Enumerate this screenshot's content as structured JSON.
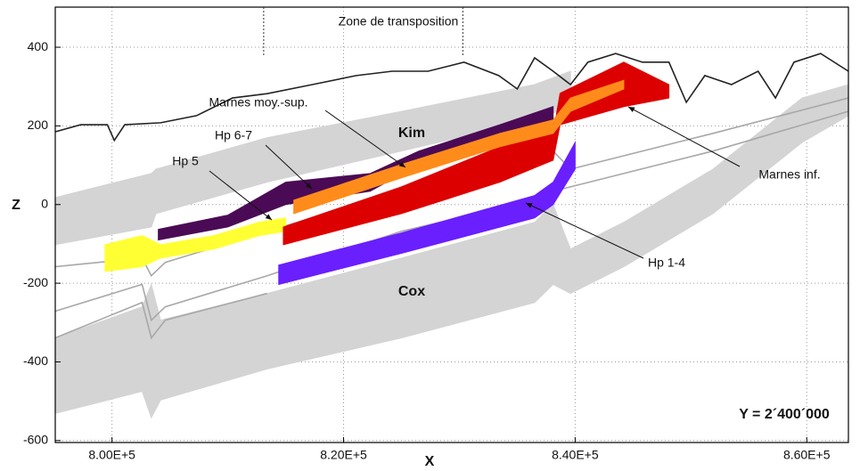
{
  "chart_data": {
    "type": "area",
    "zone_label": "Zone de transposition",
    "zone_x": [
      813100,
      830300
    ],
    "x_label": "X",
    "y_label": "Z",
    "xlim": [
      795100,
      863600
    ],
    "ylim": [
      -605,
      502
    ],
    "xticks": [
      {
        "value": 800000,
        "label": "8.00E+5"
      },
      {
        "value": 820000,
        "label": "8.20E+5"
      },
      {
        "value": 840000,
        "label": "8.40E+5"
      },
      {
        "value": 860000,
        "label": "8.60E+5"
      }
    ],
    "yticks": [
      400,
      200,
      0,
      -200,
      -400,
      -600
    ],
    "grid": true,
    "series": [
      {
        "style": "band",
        "color": "#d4d4d4",
        "x": [
          795100,
          803400,
          803800,
          813400,
          825000,
          836500,
          839600
        ],
        "values": [
          18,
          79,
          90,
          170,
          237,
          305,
          339
        ],
        "lower": [
          -102,
          -57,
          -23,
          57,
          136,
          215,
          249
        ]
      },
      {
        "style": "band",
        "color": "#d4d4d4",
        "x": [
          795100,
          802600,
          803400,
          804200,
          813400,
          825000,
          836500,
          838100,
          839600,
          844200,
          851900,
          859600,
          863600
        ],
        "values": [
          -339,
          -260,
          -203,
          -294,
          -226,
          -136,
          -45,
          0,
          -113,
          -45,
          90,
          271,
          305
        ],
        "lower": [
          -531,
          -475,
          -542,
          -497,
          -418,
          -339,
          -249,
          -203,
          -226,
          -158,
          -23,
          158,
          226
        ]
      },
      {
        "style": "line",
        "color": "#a8a8a8",
        "x": [
          795100,
          802600,
          803400,
          804600,
          813400,
          825000,
          836500,
          838100,
          839600,
          851900,
          863600
        ],
        "values": [
          -158,
          -136,
          -181,
          -147,
          -68,
          34,
          113,
          136,
          90,
          181,
          271
        ]
      },
      {
        "style": "line",
        "color": "#a8a8a8",
        "x": [
          795100,
          802600,
          803400,
          804600,
          813400,
          825000,
          836500,
          838100,
          839600,
          851900,
          863600
        ],
        "values": [
          -271,
          -203,
          -294,
          -260,
          -181,
          -68,
          11,
          34,
          45,
          136,
          237
        ]
      },
      {
        "style": "line",
        "color": "#a8a8a8",
        "x": [
          795100,
          802600,
          803400,
          804600,
          813400
        ],
        "values": [
          -339,
          -249,
          -339,
          -294,
          -226
        ]
      },
      {
        "style": "band",
        "color": "#ffff33",
        "x": [
          799400,
          802600,
          804200,
          808800,
          812700,
          815000
        ],
        "values": [
          -102,
          -79,
          -102,
          -79,
          -45,
          -34
        ],
        "lower": [
          -170,
          -158,
          -136,
          -113,
          -79,
          -68
        ]
      },
      {
        "style": "band",
        "color": "#4b0a55",
        "x": [
          804000,
          810000,
          815000,
          822300,
          826500,
          833500,
          838100
        ],
        "values": [
          -63,
          -27,
          57,
          79,
          136,
          203,
          249
        ],
        "lower": [
          -90,
          -57,
          0,
          34,
          102,
          163,
          215
        ]
      },
      {
        "style": "band",
        "color": "#dd0000",
        "x": [
          814800,
          825000,
          833500,
          838100,
          838700,
          844200,
          848100
        ],
        "values": [
          -57,
          45,
          147,
          181,
          283,
          362,
          305
        ],
        "lower": [
          -102,
          -23,
          57,
          113,
          203,
          249,
          271
        ]
      },
      {
        "style": "band",
        "color": "#ff8c1a",
        "x": [
          815700,
          825000,
          833500,
          838100,
          839600,
          844200
        ],
        "values": [
          11,
          102,
          181,
          215,
          271,
          316
        ],
        "lower": [
          -23,
          68,
          147,
          181,
          237,
          294
        ]
      },
      {
        "style": "band",
        "color": "#6a1fff",
        "x": [
          814400,
          825000,
          836500,
          838100,
          840000
        ],
        "values": [
          -154,
          -72,
          23,
          57,
          158
        ],
        "lower": [
          -203,
          -124,
          -34,
          0,
          90
        ]
      },
      {
        "style": "line",
        "color": "#222222",
        "x": [
          795100,
          797300,
          799600,
          800200,
          801100,
          804200,
          807300,
          810400,
          813400,
          817300,
          821100,
          824200,
          827300,
          830400,
          833400,
          835000,
          836500,
          838100,
          839600,
          841100,
          843500,
          845800,
          848100,
          849600,
          851200,
          853500,
          855800,
          857300,
          858900,
          861200,
          863600
        ],
        "values": [
          185,
          203,
          203,
          163,
          203,
          208,
          226,
          271,
          282,
          305,
          328,
          339,
          339,
          362,
          328,
          294,
          373,
          339,
          305,
          362,
          384,
          362,
          362,
          260,
          328,
          305,
          339,
          271,
          362,
          384,
          339
        ]
      }
    ],
    "annotations": [
      "Marnes moy.-sup.",
      "Hp 6-7",
      "Hp 5",
      "Kim",
      "Marnes inf.",
      "Hp 1-4",
      "Cox",
      "Y = 2´400´000"
    ]
  }
}
